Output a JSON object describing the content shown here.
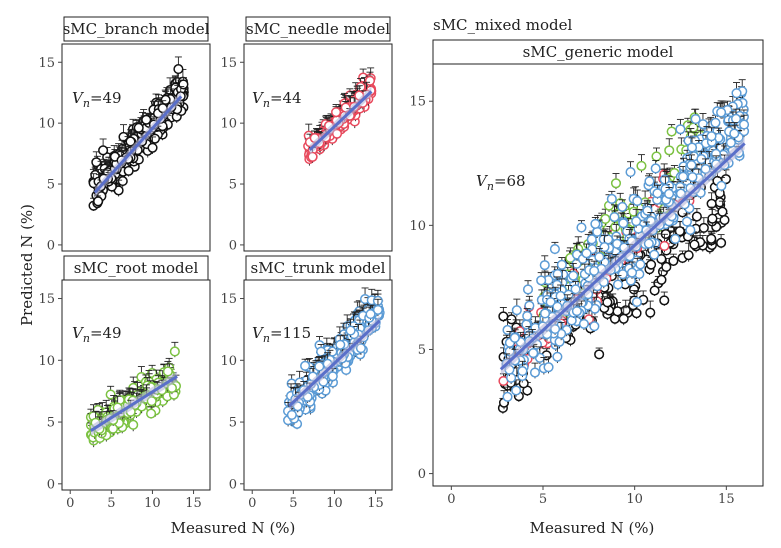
{
  "figure": {
    "ylabel": "Predicted N (%)",
    "left_xlabel": "Measured N (%)",
    "right_xlabel": "Measured N (%)",
    "right_title": "sMC_mixed model"
  },
  "colors": {
    "branch": "#111111",
    "needle": "#e8495c",
    "root": "#7cc242",
    "trunk": "#5b9bd5",
    "fit_line": "#5a6fc9",
    "fit_band": "#b8b8d8"
  },
  "chart_data": [
    {
      "id": "branch",
      "type": "scatter",
      "title": "sMC_branch model",
      "annotation": {
        "var": "V",
        "sub": "n",
        "value": "=49"
      },
      "xlim": [
        -1,
        17
      ],
      "ylim": [
        -0.5,
        16.5
      ],
      "x_ticks": [],
      "y_ticks": [
        0,
        5,
        10,
        15
      ],
      "color": "#111111",
      "fit": {
        "x": [
          3,
          13.5
        ],
        "y": [
          4.3,
          12.2
        ]
      },
      "cloud": {
        "x_range": [
          2.8,
          13.8
        ],
        "slope": 0.75,
        "intercept": 2.2,
        "spread": 1.3,
        "n": 260
      }
    },
    {
      "id": "needle",
      "type": "scatter",
      "title": "sMC_needle model",
      "annotation": {
        "var": "V",
        "sub": "n",
        "value": "=44"
      },
      "xlim": [
        -1,
        17
      ],
      "ylim": [
        -0.5,
        16.5
      ],
      "x_ticks": [],
      "y_ticks": [
        0,
        5,
        10,
        15
      ],
      "color": "#e8495c",
      "fit": {
        "x": [
          7,
          14.5
        ],
        "y": [
          7.8,
          12.6
        ]
      },
      "cloud": {
        "x_range": [
          6.8,
          14.5
        ],
        "slope": 0.68,
        "intercept": 3.0,
        "spread": 0.8,
        "n": 220
      }
    },
    {
      "id": "root",
      "type": "scatter",
      "title": "sMC_root model",
      "annotation": {
        "var": "V",
        "sub": "n",
        "value": "=49"
      },
      "xlim": [
        -1,
        17
      ],
      "ylim": [
        -0.5,
        16.5
      ],
      "x_ticks": [
        0,
        5,
        10,
        15
      ],
      "y_ticks": [
        0,
        5,
        10,
        15
      ],
      "color": "#7cc242",
      "fit": {
        "x": [
          2.5,
          13
        ],
        "y": [
          4.3,
          8.7
        ]
      },
      "cloud": {
        "x_range": [
          2.5,
          13
        ],
        "slope": 0.4,
        "intercept": 3.3,
        "spread": 1.1,
        "n": 200
      }
    },
    {
      "id": "trunk",
      "type": "scatter",
      "title": "sMC_trunk model",
      "annotation": {
        "var": "V",
        "sub": "n",
        "value": "=115"
      },
      "xlim": [
        -1,
        17
      ],
      "ylim": [
        -0.5,
        16.5
      ],
      "x_ticks": [
        0,
        5,
        10,
        15
      ],
      "y_ticks": [
        0,
        5,
        10,
        15
      ],
      "color": "#5b9bd5",
      "fit": {
        "x": [
          4.5,
          15.5
        ],
        "y": [
          6.3,
          13.2
        ]
      },
      "cloud": {
        "x_range": [
          4.3,
          15.6
        ],
        "slope": 0.75,
        "intercept": 2.5,
        "spread": 1.3,
        "n": 300
      }
    },
    {
      "id": "generic",
      "type": "scatter",
      "title": "sMC_generic model",
      "annotation": {
        "var": "V",
        "sub": "n",
        "value": "=68"
      },
      "xlim": [
        -1,
        17
      ],
      "ylim": [
        -0.5,
        16.5
      ],
      "x_ticks": [
        0,
        5,
        10,
        15
      ],
      "y_ticks": [
        0,
        5,
        10,
        15
      ],
      "fit": {
        "x": [
          2.7,
          16
        ],
        "y": [
          4.2,
          13.3
        ]
      },
      "series": [
        {
          "name": "branch",
          "color": "#111111",
          "x_range": [
            2.8,
            15
          ],
          "slope": 0.55,
          "intercept": 2.8,
          "spread": 1.4,
          "n": 200
        },
        {
          "name": "needle",
          "color": "#e8495c",
          "x_range": [
            2.8,
            13
          ],
          "slope": 0.75,
          "intercept": 2.0,
          "spread": 1.0,
          "n": 70
        },
        {
          "name": "root",
          "color": "#7cc242",
          "x_range": [
            5,
            14
          ],
          "slope": 0.7,
          "intercept": 3.5,
          "spread": 1.3,
          "n": 90
        },
        {
          "name": "trunk",
          "color": "#5b9bd5",
          "x_range": [
            3,
            16
          ],
          "slope": 0.75,
          "intercept": 2.3,
          "spread": 1.5,
          "n": 380
        }
      ]
    }
  ]
}
